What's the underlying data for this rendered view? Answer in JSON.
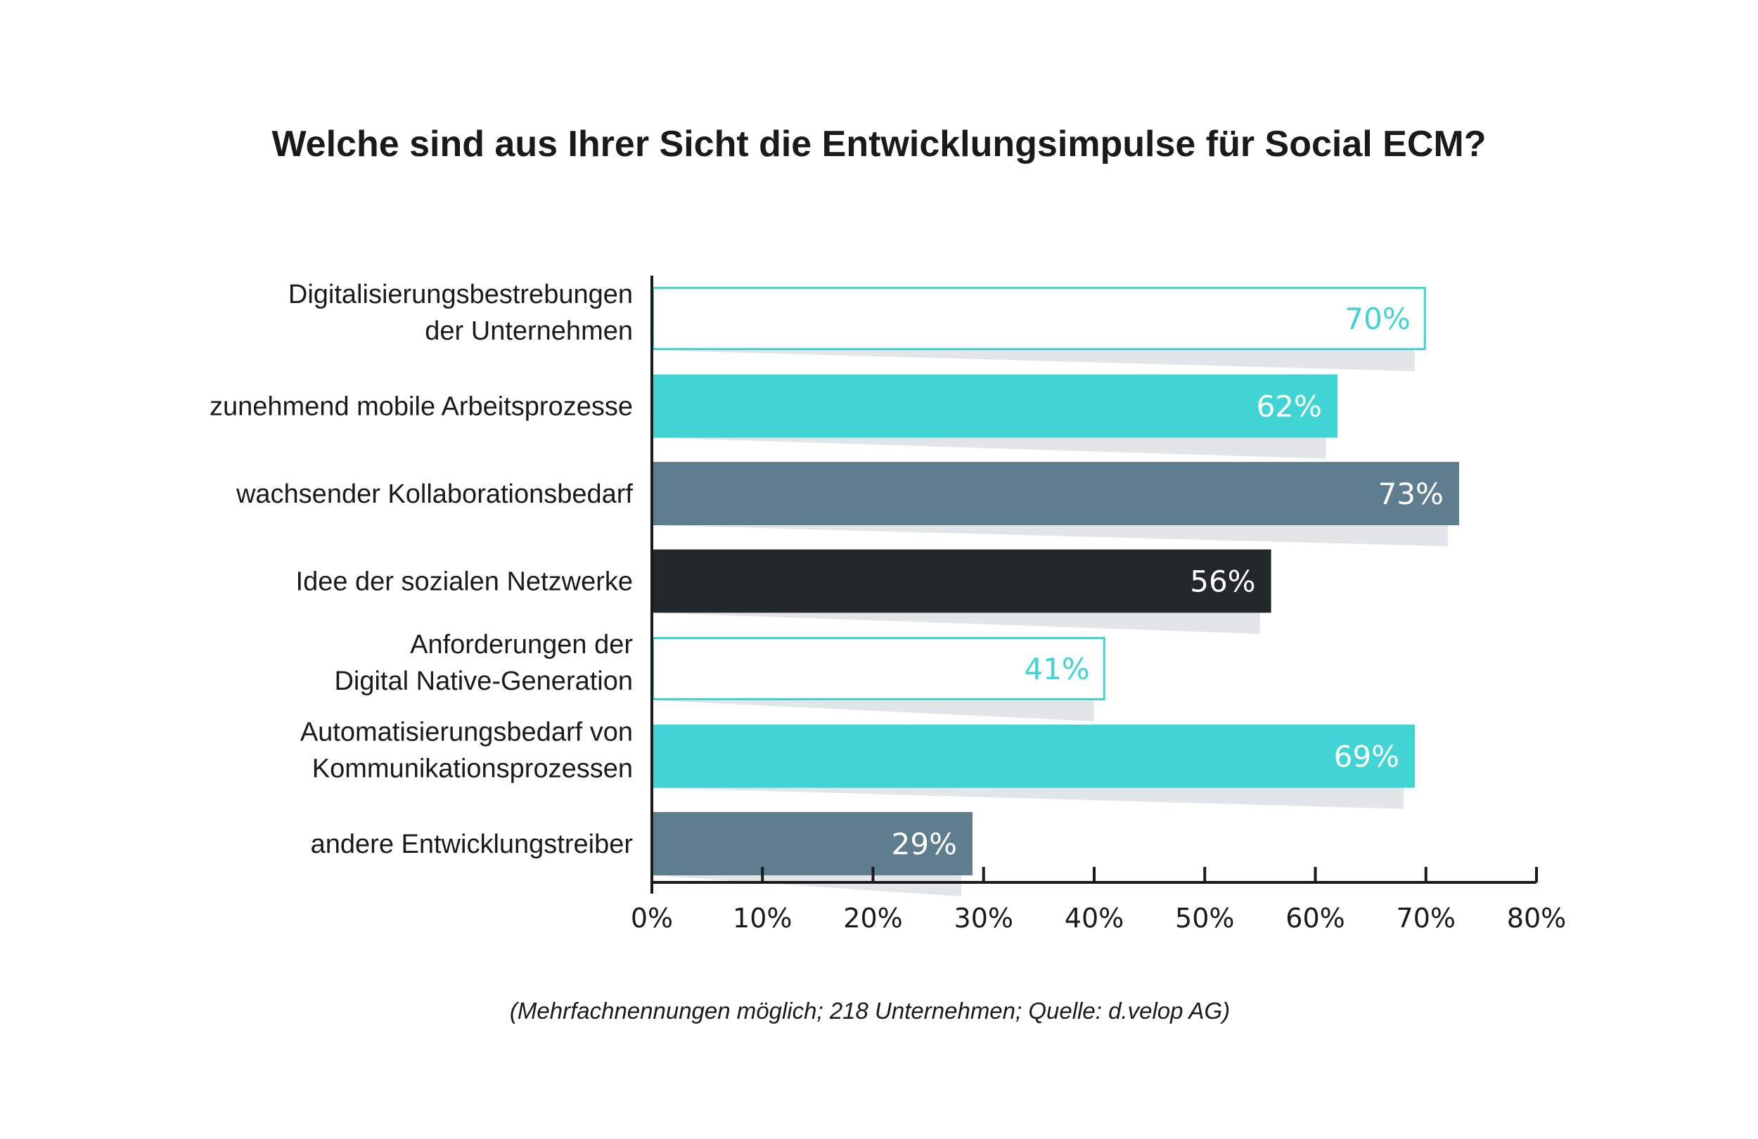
{
  "chart_data": {
    "type": "bar",
    "orientation": "horizontal",
    "title": "Welche sind aus Ihrer Sicht die Entwicklungsimpulse für Social ECM?",
    "categories": [
      [
        "Digitalisierungsbestrebungen",
        "der Unternehmen"
      ],
      [
        "zunehmend mobile Arbeitsprozesse"
      ],
      [
        "wachsender Kollaborationsbedarf"
      ],
      [
        "Idee der sozialen Netzwerke"
      ],
      [
        "Anforderungen der",
        "Digital Native-Generation"
      ],
      [
        "Automatisierungsbedarf von",
        "Kommunikationsprozessen"
      ],
      [
        "andere Entwicklungstreiber"
      ]
    ],
    "values": [
      70,
      62,
      73,
      56,
      41,
      69,
      29
    ],
    "value_labels": [
      "70%",
      "62%",
      "73%",
      "56%",
      "41%",
      "69%",
      "29%"
    ],
    "bar_styles": [
      "outline",
      "filled",
      "filled",
      "filled",
      "outline",
      "filled",
      "filled"
    ],
    "bar_colors": [
      "#40d4d4",
      "#40d4d4",
      "#5e7d8f",
      "#23282b",
      "#40d4d4",
      "#40d4d4",
      "#5e7d8f"
    ],
    "shadow_color": "#e3e6e8",
    "xlim": [
      0,
      80
    ],
    "x_ticks": [
      "0%",
      "10%",
      "20%",
      "30%",
      "40%",
      "50%",
      "60%",
      "70%",
      "80%"
    ],
    "grid": false,
    "xlabel": "",
    "ylabel": ""
  },
  "footnote": "(Mehrfachnennungen möglich; 218 Unternehmen; Quelle: d.velop AG)"
}
